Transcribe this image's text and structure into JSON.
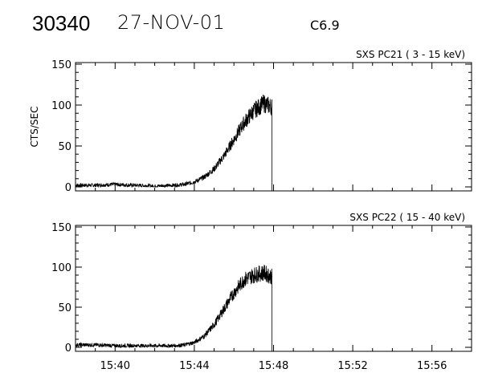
{
  "header": {
    "event_id": "30340",
    "date": "27-NOV-01",
    "flare_class": "C6.9"
  },
  "chart_data": [
    {
      "type": "line",
      "title": "SXS PC21  (  3 - 15 keV)",
      "ylabel": "CTS/SEC",
      "xlabel": "",
      "ylim": [
        0,
        150
      ],
      "yticks": [
        0,
        50,
        100,
        150
      ],
      "xlim_minutes": [
        "15:38",
        "15:58"
      ],
      "xtick_labels": [
        "15:40",
        "15:44",
        "15:48",
        "15:52",
        "15:56"
      ],
      "series": [
        {
          "x": [
            "15:38",
            "15:39",
            "15:40",
            "15:41",
            "15:42",
            "15:43",
            "15:43:30",
            "15:44",
            "15:44:30",
            "15:45",
            "15:45:30",
            "15:46",
            "15:46:30",
            "15:47",
            "15:47:30",
            "15:47:55"
          ],
          "y": [
            2,
            2,
            3,
            2,
            1,
            2,
            3,
            6,
            12,
            22,
            38,
            58,
            78,
            93,
            102,
            98
          ]
        }
      ]
    },
    {
      "type": "line",
      "title": "SXS PC22  ( 15 - 40 keV)",
      "ylabel": "",
      "xlabel": "",
      "ylim": [
        0,
        150
      ],
      "yticks": [
        0,
        50,
        100,
        150
      ],
      "xlim_minutes": [
        "15:38",
        "15:58"
      ],
      "xtick_labels": [
        "15:40",
        "15:44",
        "15:48",
        "15:52",
        "15:56"
      ],
      "series": [
        {
          "x": [
            "15:38",
            "15:39",
            "15:40",
            "15:41",
            "15:42",
            "15:43",
            "15:43:30",
            "15:44",
            "15:44:30",
            "15:45",
            "15:45:30",
            "15:46",
            "15:46:30",
            "15:47",
            "15:47:30",
            "15:47:55"
          ],
          "y": [
            3,
            3,
            2,
            2,
            2,
            2,
            3,
            6,
            14,
            28,
            48,
            68,
            84,
            90,
            93,
            88
          ]
        }
      ]
    }
  ]
}
